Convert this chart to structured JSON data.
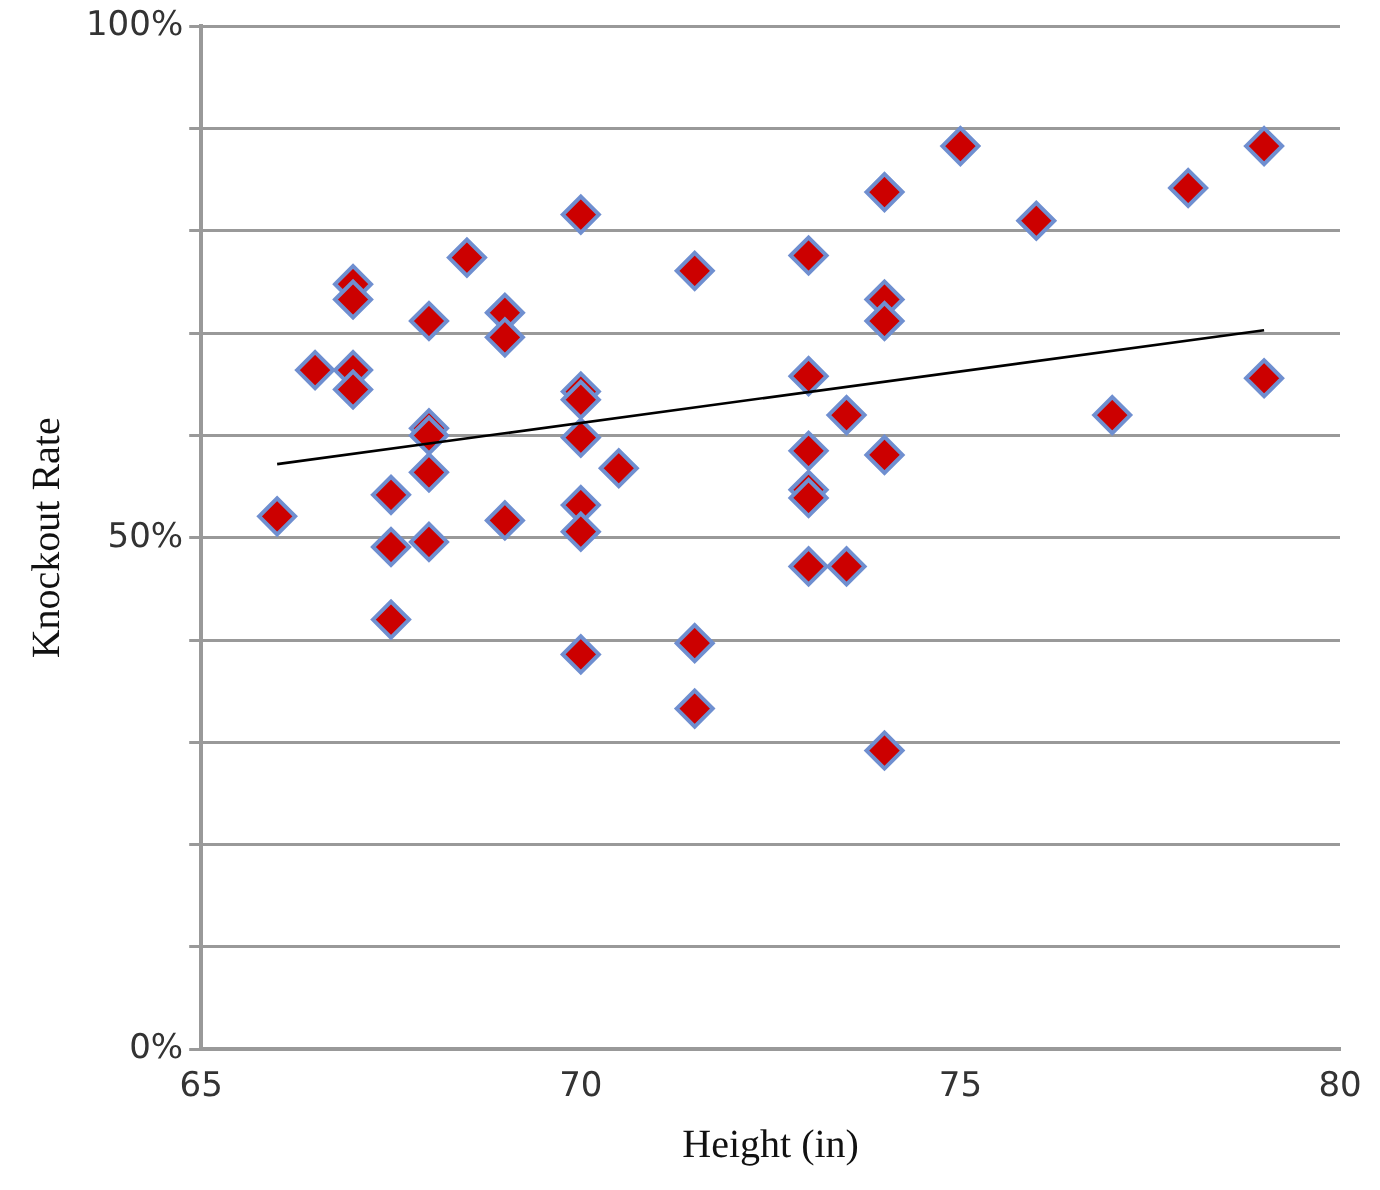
{
  "chart_data": {
    "type": "scatter",
    "xlabel": "Height (in)",
    "ylabel": "Knockout Rate",
    "xlim": [
      65,
      80
    ],
    "xticks": [
      65,
      70,
      75,
      80
    ],
    "ylim": [
      0,
      100
    ],
    "yticks": [
      {
        "value": 0,
        "label": "0%"
      },
      {
        "value": 10,
        "label": null
      },
      {
        "value": 20,
        "label": null
      },
      {
        "value": 30,
        "label": null
      },
      {
        "value": 40,
        "label": null
      },
      {
        "value": 50,
        "label": "50%"
      },
      {
        "value": 60,
        "label": null
      },
      {
        "value": 70,
        "label": null
      },
      {
        "value": 80,
        "label": null
      },
      {
        "value": 90,
        "label": null
      },
      {
        "value": 100,
        "label": "100%"
      }
    ],
    "grid": "y",
    "legend": false,
    "marker": "diamond",
    "series": [
      {
        "color": "#cc0000",
        "x": [
          66,
          66.5,
          67,
          67,
          67,
          67,
          67.5,
          67.5,
          67.5,
          68,
          68,
          68,
          68,
          68,
          68.5,
          69,
          69,
          69,
          70,
          70,
          70,
          70,
          70,
          70,
          70,
          70.5,
          71.5,
          71.5,
          71.5,
          73,
          73,
          73,
          73,
          73,
          73,
          73.5,
          73.5,
          74,
          74,
          74,
          74,
          74,
          75,
          76,
          77,
          78,
          79,
          79
        ],
        "values": [
          52.1,
          66.4,
          74.8,
          73.3,
          66.4,
          64.5,
          54.2,
          49.1,
          42,
          71.2,
          60.7,
          60,
          56.4,
          49.6,
          77.4,
          72,
          69.6,
          51.7,
          81.6,
          64.3,
          63.5,
          59.8,
          53.2,
          50.6,
          38.6,
          56.8,
          76.1,
          39.7,
          33.3,
          77.6,
          65.8,
          58.5,
          54.7,
          53.9,
          47.2,
          62,
          47.2,
          83.8,
          73.3,
          71.2,
          58.1,
          29.2,
          88.3,
          81,
          62,
          84.2,
          88.3,
          65.6
        ]
      },
      {
        "type": "line",
        "color": "#000000",
        "marker": "none",
        "x": [
          66,
          79
        ],
        "values": [
          57.2,
          70.3
        ]
      }
    ]
  }
}
